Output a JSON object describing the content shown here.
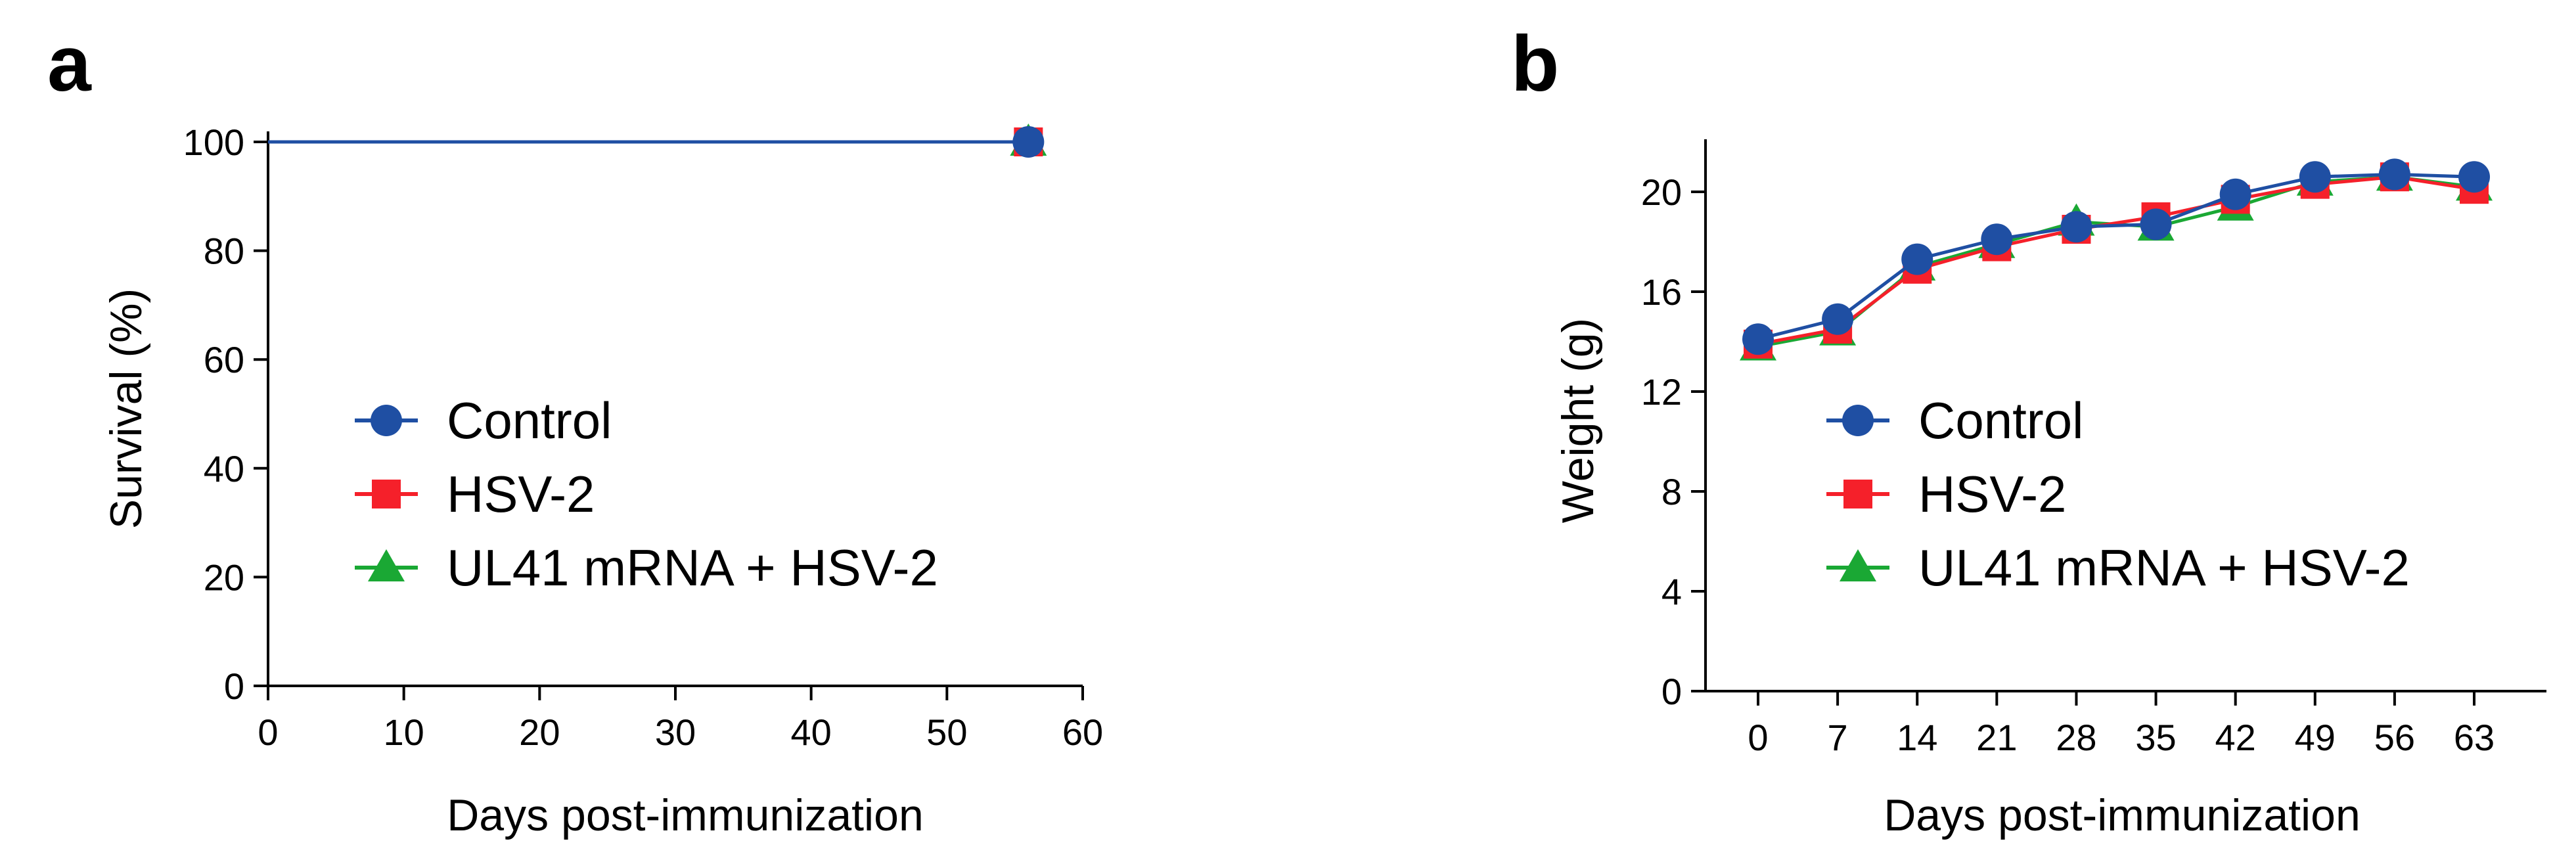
{
  "chart_data": [
    {
      "panel": "a",
      "type": "line",
      "title": "",
      "xlabel": "Days post-immunization",
      "ylabel": "Survival (%)",
      "xlim": [
        0,
        60
      ],
      "ylim": [
        0,
        100
      ],
      "xticks": [
        0,
        10,
        20,
        30,
        40,
        50,
        60
      ],
      "yticks": [
        0,
        20,
        40,
        60,
        80,
        100
      ],
      "xtick_labels": [
        "0",
        "10",
        "20",
        "30",
        "40",
        "50",
        "60"
      ],
      "ytick_labels": [
        "0",
        "20",
        "40",
        "60",
        "80",
        "100"
      ],
      "grid": false,
      "legend_position": "center-left",
      "series": [
        {
          "name": "UL41 mRNA + HSV-2",
          "color": "#1aa834",
          "marker": "triangle",
          "x": [
            0,
            56
          ],
          "y": [
            100,
            100
          ],
          "markers_at": [
            56
          ]
        },
        {
          "name": "HSV-2",
          "color": "#f5202a",
          "marker": "square",
          "x": [
            0,
            56
          ],
          "y": [
            100,
            100
          ],
          "markers_at": [
            56
          ]
        },
        {
          "name": "Control",
          "color": "#1f4fa3",
          "marker": "circle",
          "x": [
            0,
            56
          ],
          "y": [
            100,
            100
          ],
          "markers_at": [
            56
          ]
        }
      ]
    },
    {
      "panel": "b",
      "type": "line",
      "title": "",
      "xlabel": "Days post-immunization",
      "ylabel": "Weight (g)",
      "categories": [
        "0",
        "7",
        "14",
        "21",
        "28",
        "35",
        "42",
        "49",
        "56",
        "63"
      ],
      "ylim": [
        0,
        22
      ],
      "yticks": [
        0,
        4,
        8,
        12,
        16,
        20
      ],
      "ytick_labels": [
        "0",
        "4",
        "8",
        "12",
        "16",
        "20"
      ],
      "grid": false,
      "legend_position": "center-left",
      "series": [
        {
          "name": "UL41 mRNA + HSV-2",
          "color": "#1aa834",
          "marker": "triangle",
          "values": [
            13.8,
            14.4,
            17.0,
            17.9,
            18.8,
            18.6,
            19.4,
            20.4,
            20.6,
            20.2
          ]
        },
        {
          "name": "HSV-2",
          "color": "#f5202a",
          "marker": "square",
          "values": [
            13.9,
            14.5,
            16.9,
            17.8,
            18.5,
            19.0,
            19.7,
            20.3,
            20.6,
            20.1
          ]
        },
        {
          "name": "Control",
          "color": "#1f4fa3",
          "marker": "circle",
          "values": [
            14.1,
            14.9,
            17.3,
            18.1,
            18.6,
            18.7,
            19.9,
            20.6,
            20.7,
            20.6
          ]
        }
      ]
    }
  ],
  "panels": {
    "a": {
      "label": "a"
    },
    "b": {
      "label": "b"
    }
  },
  "legend": [
    "Control",
    "HSV-2",
    "UL41 mRNA + HSV-2"
  ]
}
